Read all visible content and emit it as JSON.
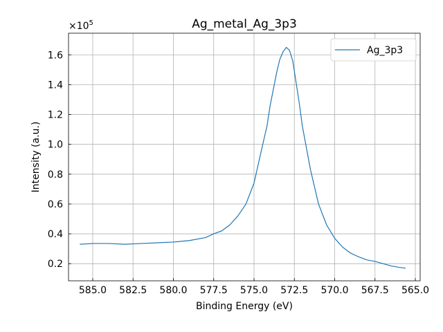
{
  "chart_data": {
    "type": "line",
    "title": "Ag_metal_Ag_3p3",
    "xlabel": "Binding Energy (eV)",
    "ylabel": "Intensity (a.u.)",
    "y_multiplier_label": "×10",
    "y_multiplier_exponent": "5",
    "x_reversed": true,
    "xlim": [
      586.5,
      564.7
    ],
    "ylim": [
      0.085,
      1.745
    ],
    "grid": true,
    "legend_position": "top-right",
    "x_ticks": [
      585.0,
      582.5,
      580.0,
      577.5,
      575.0,
      572.5,
      570.0,
      567.5,
      565.0
    ],
    "x_tick_labels": [
      "585.0",
      "582.5",
      "580.0",
      "577.5",
      "575.0",
      "572.5",
      "570.0",
      "567.5",
      "565.0"
    ],
    "y_ticks": [
      0.2,
      0.4,
      0.6,
      0.8,
      1.0,
      1.2,
      1.4,
      1.6
    ],
    "y_tick_labels": [
      "0.2",
      "0.4",
      "0.6",
      "0.8",
      "1.0",
      "1.2",
      "1.4",
      "1.6"
    ],
    "series": [
      {
        "name": "Ag_3p3",
        "color": "#1f77b4",
        "x": [
          585.8,
          585.0,
          584.0,
          583.0,
          582.0,
          581.0,
          580.0,
          579.0,
          578.0,
          577.5,
          577.0,
          576.5,
          576.0,
          575.5,
          575.0,
          574.5,
          574.2,
          574.0,
          573.8,
          573.6,
          573.4,
          573.2,
          573.0,
          572.8,
          572.6,
          572.4,
          572.2,
          572.0,
          571.5,
          571.0,
          570.5,
          570.0,
          569.5,
          569.0,
          568.5,
          568.0,
          567.5,
          567.0,
          566.5,
          566.0,
          565.6
        ],
        "y": [
          0.33,
          0.335,
          0.335,
          0.33,
          0.335,
          0.34,
          0.345,
          0.355,
          0.375,
          0.4,
          0.42,
          0.46,
          0.52,
          0.6,
          0.74,
          0.98,
          1.12,
          1.26,
          1.37,
          1.48,
          1.57,
          1.62,
          1.65,
          1.63,
          1.56,
          1.42,
          1.28,
          1.12,
          0.83,
          0.6,
          0.46,
          0.37,
          0.31,
          0.27,
          0.245,
          0.225,
          0.215,
          0.2,
          0.185,
          0.175,
          0.17
        ]
      }
    ]
  }
}
